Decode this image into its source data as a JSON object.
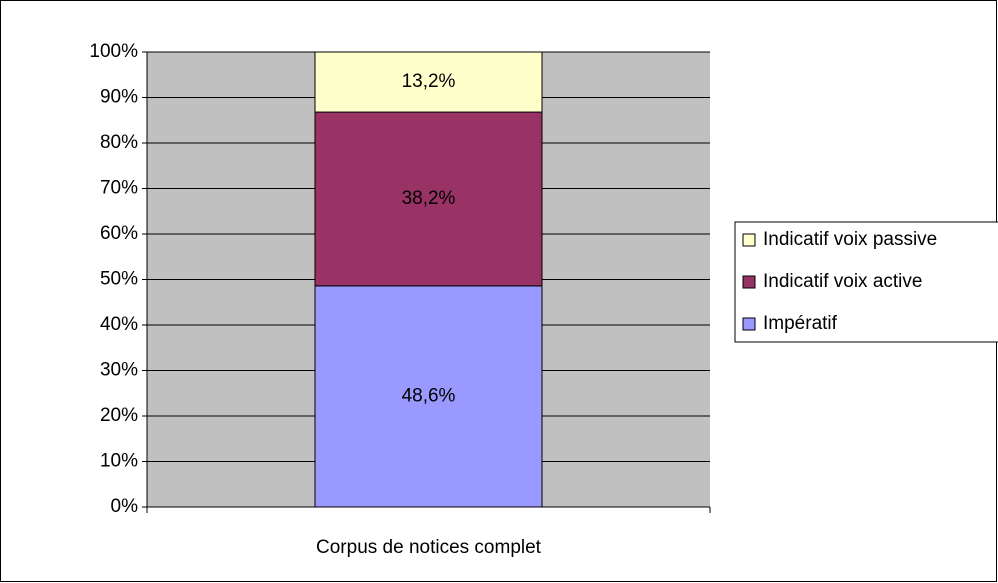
{
  "chart_data": {
    "type": "stacked_bar",
    "categories": [
      "Corpus de notices complet"
    ],
    "series": [
      {
        "name": "Impératif",
        "color": "#9999ff",
        "values": [
          48.6
        ],
        "value_labels": [
          "48,6%"
        ]
      },
      {
        "name": "Indicatif voix active",
        "color": "#993366",
        "values": [
          38.2
        ],
        "value_labels": [
          "38,2%"
        ]
      },
      {
        "name": "Indicatif voix passive",
        "color": "#ffffcc",
        "values": [
          13.2
        ],
        "value_labels": [
          "13,2%"
        ]
      }
    ],
    "ylim": [
      0,
      100
    ],
    "yticks": [
      {
        "value": 0,
        "label": "0%"
      },
      {
        "value": 10,
        "label": "10%"
      },
      {
        "value": 20,
        "label": "20%"
      },
      {
        "value": 30,
        "label": "30%"
      },
      {
        "value": 40,
        "label": "40%"
      },
      {
        "value": 50,
        "label": "50%"
      },
      {
        "value": 60,
        "label": "60%"
      },
      {
        "value": 70,
        "label": "70%"
      },
      {
        "value": 80,
        "label": "80%"
      },
      {
        "value": 90,
        "label": "90%"
      },
      {
        "value": 100,
        "label": "100%"
      }
    ],
    "grid": true,
    "plot_background": "#c0c0c0",
    "legend": "right"
  }
}
